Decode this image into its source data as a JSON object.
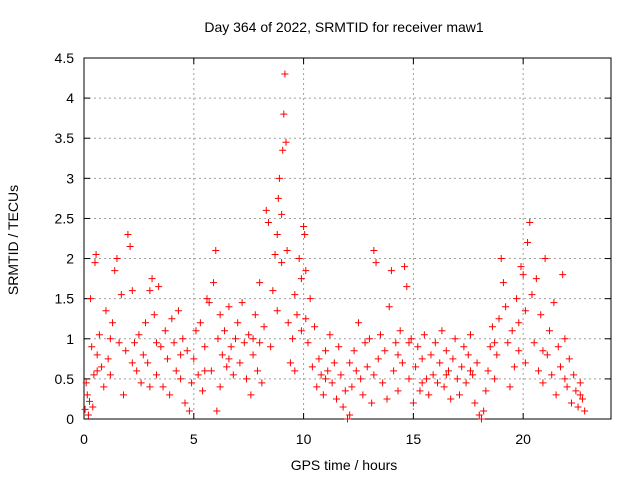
{
  "chart_data": {
    "type": "scatter",
    "title": "Day 364 of 2022, SRMTID for receiver maw1",
    "xlabel": "GPS time / hours",
    "ylabel": "SRMTID / TECUs",
    "xlim": [
      0,
      24
    ],
    "ylim": [
      0,
      4.5
    ],
    "x_ticks": [
      "0",
      "5",
      "10",
      "15",
      "20"
    ],
    "x_tick_values": [
      0,
      5,
      10,
      15,
      20
    ],
    "y_ticks": [
      "0",
      "0.5",
      "1",
      "1.5",
      "2",
      "2.5",
      "3",
      "3.5",
      "4",
      "4.5"
    ],
    "y_tick_values": [
      0,
      0.5,
      1,
      1.5,
      2,
      2.5,
      3,
      3.5,
      4,
      4.5
    ],
    "grid": true,
    "marker": "+",
    "color": "#ff0000",
    "series": [
      {
        "name": "SRMTID",
        "points": [
          [
            0.05,
            0.12
          ],
          [
            0.1,
            0.45
          ],
          [
            0.15,
            0.3
          ],
          [
            0.2,
            0.05
          ],
          [
            0.25,
            0.22
          ],
          [
            0.3,
            1.5
          ],
          [
            0.35,
            0.9
          ],
          [
            0.4,
            0.15
          ],
          [
            0.45,
            0.55
          ],
          [
            0.5,
            1.95
          ],
          [
            0.55,
            2.05
          ],
          [
            0.6,
            0.8
          ],
          [
            0.7,
            1.05
          ],
          [
            0.8,
            0.65
          ],
          [
            0.9,
            0.4
          ],
          [
            1.0,
            1.35
          ],
          [
            1.1,
            0.75
          ],
          [
            1.2,
            0.55
          ],
          [
            1.3,
            1.2
          ],
          [
            1.4,
            1.85
          ],
          [
            1.5,
            2.0
          ],
          [
            1.6,
            0.95
          ],
          [
            1.7,
            1.55
          ],
          [
            1.8,
            0.3
          ],
          [
            1.9,
            0.85
          ],
          [
            2.0,
            2.3
          ],
          [
            2.1,
            2.15
          ],
          [
            2.2,
            1.6
          ],
          [
            2.3,
            0.95
          ],
          [
            2.4,
            0.6
          ],
          [
            2.5,
            1.05
          ],
          [
            2.6,
            0.45
          ],
          [
            2.7,
            0.8
          ],
          [
            2.8,
            1.2
          ],
          [
            2.9,
            0.7
          ],
          [
            3.0,
            1.6
          ],
          [
            3.1,
            1.75
          ],
          [
            3.2,
            1.3
          ],
          [
            3.3,
            0.55
          ],
          [
            3.4,
            1.65
          ],
          [
            3.5,
            0.9
          ],
          [
            3.6,
            0.4
          ],
          [
            3.7,
            1.1
          ],
          [
            3.8,
            0.75
          ],
          [
            3.9,
            0.3
          ],
          [
            4.0,
            1.25
          ],
          [
            4.1,
            0.95
          ],
          [
            4.2,
            0.6
          ],
          [
            4.3,
            1.35
          ],
          [
            4.4,
            0.5
          ],
          [
            4.5,
            1.0
          ],
          [
            4.6,
            0.2
          ],
          [
            4.7,
            0.85
          ],
          [
            4.8,
            0.1
          ],
          [
            4.9,
            0.45
          ],
          [
            5.0,
            0.75
          ],
          [
            5.1,
            1.1
          ],
          [
            5.2,
            0.55
          ],
          [
            5.3,
            1.2
          ],
          [
            5.4,
            0.35
          ],
          [
            5.5,
            0.9
          ],
          [
            5.6,
            1.5
          ],
          [
            5.7,
            1.45
          ],
          [
            5.8,
            0.6
          ],
          [
            5.9,
            1.7
          ],
          [
            6.0,
            2.1
          ],
          [
            6.05,
            0.1
          ],
          [
            6.1,
            1.0
          ],
          [
            6.2,
            0.4
          ],
          [
            6.3,
            0.8
          ],
          [
            6.4,
            1.1
          ],
          [
            6.5,
            0.65
          ],
          [
            6.6,
            1.4
          ],
          [
            6.7,
            0.9
          ],
          [
            6.8,
            0.55
          ],
          [
            6.9,
            1.0
          ],
          [
            7.0,
            1.2
          ],
          [
            7.1,
            0.7
          ],
          [
            7.2,
            1.45
          ],
          [
            7.3,
            0.95
          ],
          [
            7.4,
            0.5
          ],
          [
            7.5,
            1.05
          ],
          [
            7.6,
            0.3
          ],
          [
            7.7,
            0.8
          ],
          [
            7.8,
            1.3
          ],
          [
            7.9,
            0.6
          ],
          [
            8.0,
            0.95
          ],
          [
            8.1,
            0.45
          ],
          [
            8.2,
            1.15
          ],
          [
            8.3,
            2.6
          ],
          [
            8.4,
            2.45
          ],
          [
            8.5,
            0.9
          ],
          [
            8.6,
            1.6
          ],
          [
            8.7,
            2.05
          ],
          [
            8.8,
            2.3
          ],
          [
            8.85,
            2.75
          ],
          [
            8.9,
            3.0
          ],
          [
            9.0,
            2.55
          ],
          [
            9.05,
            3.35
          ],
          [
            9.1,
            3.8
          ],
          [
            9.15,
            4.3
          ],
          [
            9.2,
            3.45
          ],
          [
            9.25,
            2.1
          ],
          [
            9.3,
            1.2
          ],
          [
            9.4,
            0.7
          ],
          [
            9.5,
            1.0
          ],
          [
            9.6,
            1.55
          ],
          [
            9.7,
            1.3
          ],
          [
            9.8,
            2.0
          ],
          [
            9.9,
            1.75
          ],
          [
            10.0,
            2.4
          ],
          [
            10.05,
            2.3
          ],
          [
            10.1,
            1.85
          ],
          [
            10.2,
            0.95
          ],
          [
            10.3,
            1.5
          ],
          [
            10.4,
            0.65
          ],
          [
            10.5,
            1.15
          ],
          [
            10.6,
            0.4
          ],
          [
            10.7,
            0.75
          ],
          [
            10.8,
            0.55
          ],
          [
            10.9,
            0.3
          ],
          [
            11.0,
            0.85
          ],
          [
            11.1,
            0.6
          ],
          [
            11.2,
            1.05
          ],
          [
            11.3,
            0.45
          ],
          [
            11.4,
            0.7
          ],
          [
            11.5,
            0.25
          ],
          [
            11.6,
            0.9
          ],
          [
            11.7,
            0.55
          ],
          [
            11.8,
            0.15
          ],
          [
            11.9,
            0.35
          ],
          [
            12.0,
            0.0
          ],
          [
            12.1,
            0.05
          ],
          [
            12.2,
            0.4
          ],
          [
            12.3,
            0.85
          ],
          [
            12.4,
            0.6
          ],
          [
            12.5,
            1.2
          ],
          [
            12.6,
            0.5
          ],
          [
            12.7,
            0.3
          ],
          [
            12.8,
            0.95
          ],
          [
            12.9,
            0.65
          ],
          [
            13.0,
            1.0
          ],
          [
            13.1,
            0.2
          ],
          [
            13.2,
            2.1
          ],
          [
            13.3,
            1.95
          ],
          [
            13.4,
            0.75
          ],
          [
            13.5,
            1.05
          ],
          [
            13.6,
            0.45
          ],
          [
            13.7,
            0.85
          ],
          [
            13.8,
            0.25
          ],
          [
            13.9,
            1.4
          ],
          [
            14.0,
            1.85
          ],
          [
            14.1,
            0.6
          ],
          [
            14.2,
            0.95
          ],
          [
            14.3,
            0.35
          ],
          [
            14.4,
            1.1
          ],
          [
            14.5,
            0.7
          ],
          [
            14.6,
            1.9
          ],
          [
            14.7,
            1.65
          ],
          [
            14.8,
            0.5
          ],
          [
            14.9,
            1.0
          ],
          [
            15.0,
            0.2
          ],
          [
            15.1,
            0.65
          ],
          [
            15.2,
            0.9
          ],
          [
            15.3,
            0.35
          ],
          [
            15.4,
            0.75
          ],
          [
            15.5,
            1.05
          ],
          [
            15.6,
            0.5
          ],
          [
            15.7,
            0.3
          ],
          [
            15.8,
            0.8
          ],
          [
            15.9,
            0.55
          ],
          [
            16.0,
            0.95
          ],
          [
            16.1,
            0.45
          ],
          [
            16.2,
            0.7
          ],
          [
            16.3,
            1.1
          ],
          [
            16.4,
            0.4
          ],
          [
            16.5,
            0.85
          ],
          [
            16.6,
            0.6
          ],
          [
            16.7,
            0.25
          ],
          [
            16.8,
            0.75
          ],
          [
            16.9,
            1.0
          ],
          [
            17.0,
            0.5
          ],
          [
            17.1,
            0.3
          ],
          [
            17.2,
            0.65
          ],
          [
            17.3,
            0.9
          ],
          [
            17.4,
            0.45
          ],
          [
            17.5,
            0.8
          ],
          [
            17.6,
            1.05
          ],
          [
            17.7,
            0.55
          ],
          [
            17.8,
            0.2
          ],
          [
            17.9,
            0.7
          ],
          [
            18.0,
            0.05
          ],
          [
            18.1,
            0.0
          ],
          [
            18.2,
            0.1
          ],
          [
            18.3,
            0.35
          ],
          [
            18.4,
            0.6
          ],
          [
            18.5,
            0.9
          ],
          [
            18.6,
            1.15
          ],
          [
            18.7,
            0.5
          ],
          [
            18.8,
            0.8
          ],
          [
            18.9,
            1.25
          ],
          [
            19.0,
            2.0
          ],
          [
            19.1,
            1.7
          ],
          [
            19.2,
            1.4
          ],
          [
            19.3,
            0.95
          ],
          [
            19.4,
            0.4
          ],
          [
            19.5,
            1.1
          ],
          [
            19.6,
            0.65
          ],
          [
            19.7,
            1.5
          ],
          [
            19.8,
            0.85
          ],
          [
            19.9,
            1.9
          ],
          [
            20.0,
            1.8
          ],
          [
            20.1,
            1.35
          ],
          [
            20.2,
            2.2
          ],
          [
            20.3,
            2.45
          ],
          [
            20.4,
            1.55
          ],
          [
            20.5,
            0.95
          ],
          [
            20.6,
            1.75
          ],
          [
            20.7,
            0.6
          ],
          [
            20.8,
            1.3
          ],
          [
            20.9,
            0.45
          ],
          [
            21.0,
            2.0
          ],
          [
            21.1,
            0.8
          ],
          [
            21.2,
            1.1
          ],
          [
            21.3,
            0.55
          ],
          [
            21.4,
            1.45
          ],
          [
            21.5,
            0.3
          ],
          [
            21.6,
            0.9
          ],
          [
            21.7,
            0.65
          ],
          [
            21.8,
            1.8
          ],
          [
            21.9,
            1.0
          ],
          [
            22.0,
            0.4
          ],
          [
            22.1,
            0.75
          ],
          [
            22.2,
            0.2
          ],
          [
            22.3,
            0.55
          ],
          [
            22.4,
            0.35
          ],
          [
            22.5,
            0.15
          ],
          [
            22.6,
            0.45
          ],
          [
            22.7,
            0.25
          ],
          [
            22.8,
            0.1
          ],
          [
            0.6,
            0.6
          ],
          [
            1.2,
            1.0
          ],
          [
            2.2,
            0.7
          ],
          [
            3.3,
            0.95
          ],
          [
            4.4,
            0.8
          ],
          [
            5.5,
            0.6
          ],
          [
            6.6,
            0.75
          ],
          [
            7.7,
            1.0
          ],
          [
            8.8,
            1.35
          ],
          [
            9.9,
            1.1
          ],
          [
            11.0,
            0.5
          ],
          [
            12.1,
            0.7
          ],
          [
            13.2,
            0.55
          ],
          [
            14.3,
            0.8
          ],
          [
            15.4,
            0.45
          ],
          [
            16.5,
            0.55
          ],
          [
            17.6,
            0.6
          ],
          [
            18.7,
            0.95
          ],
          [
            19.8,
            1.2
          ],
          [
            20.9,
            0.85
          ],
          [
            21.9,
            0.5
          ],
          [
            22.6,
            0.3
          ],
          [
            8.0,
            1.7
          ],
          [
            9.0,
            1.95
          ],
          [
            9.6,
            0.6
          ],
          [
            10.1,
            1.25
          ],
          [
            3.0,
            0.4
          ],
          [
            6.2,
            1.3
          ],
          [
            14.8,
            0.95
          ],
          [
            20.1,
            0.7
          ]
        ]
      }
    ]
  }
}
